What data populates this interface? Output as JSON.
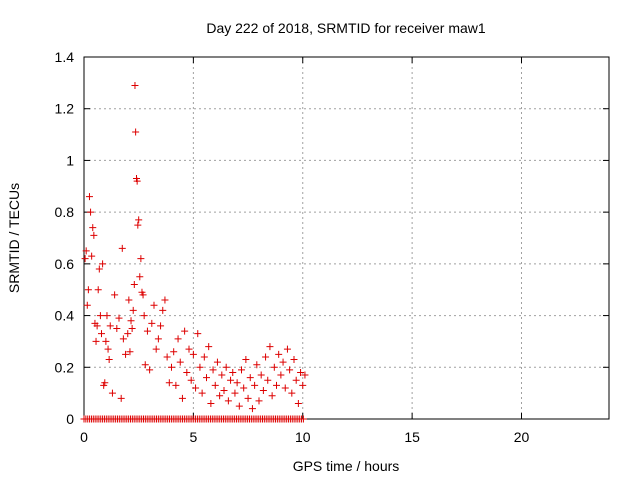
{
  "chart_data": {
    "type": "scatter",
    "title": "Day 222 of 2018, SRMTID for receiver maw1",
    "xlabel": "GPS time / hours",
    "ylabel": "SRMTID / TECUs",
    "xlim": [
      0,
      24
    ],
    "ylim": [
      0,
      1.4
    ],
    "x_ticks": [
      0,
      5,
      10,
      15,
      20
    ],
    "x_tick_labels": [
      "0",
      "5",
      "10",
      "15",
      "20"
    ],
    "y_ticks": [
      0,
      0.2,
      0.4,
      0.6,
      0.8,
      1,
      1.2,
      1.4
    ],
    "y_tick_labels": [
      "0",
      "0.2",
      "0.4",
      "0.6",
      "0.8",
      "1",
      "1.2",
      "1.4"
    ],
    "grid": true,
    "marker": "+",
    "series": [
      {
        "name": "SRMTID",
        "color": "#dd0000",
        "points": [
          [
            0.05,
            0.62
          ],
          [
            0.1,
            0.65
          ],
          [
            0.15,
            0.44
          ],
          [
            0.2,
            0.5
          ],
          [
            0.25,
            0.86
          ],
          [
            0.3,
            0.8
          ],
          [
            0.35,
            0.63
          ],
          [
            0.4,
            0.74
          ],
          [
            0.45,
            0.71
          ],
          [
            0.5,
            0.37
          ],
          [
            0.55,
            0.3
          ],
          [
            0.6,
            0.36
          ],
          [
            0.65,
            0.5
          ],
          [
            0.7,
            0.58
          ],
          [
            0.75,
            0.4
          ],
          [
            0.8,
            0.33
          ],
          [
            0.85,
            0.6
          ],
          [
            0.9,
            0.13
          ],
          [
            0.95,
            0.14
          ],
          [
            1.0,
            0.3
          ],
          [
            1.05,
            0.4
          ],
          [
            1.1,
            0.27
          ],
          [
            1.15,
            0.23
          ],
          [
            1.2,
            0.36
          ],
          [
            1.3,
            0.1
          ],
          [
            1.4,
            0.48
          ],
          [
            1.5,
            0.35
          ],
          [
            1.6,
            0.39
          ],
          [
            1.7,
            0.08
          ],
          [
            1.75,
            0.66
          ],
          [
            1.8,
            0.31
          ],
          [
            1.9,
            0.25
          ],
          [
            2.0,
            0.33
          ],
          [
            2.05,
            0.46
          ],
          [
            2.1,
            0.26
          ],
          [
            2.15,
            0.38
          ],
          [
            2.2,
            0.35
          ],
          [
            2.25,
            0.42
          ],
          [
            2.3,
            0.52
          ],
          [
            2.33,
            1.29
          ],
          [
            2.36,
            1.11
          ],
          [
            2.4,
            0.93
          ],
          [
            2.43,
            0.92
          ],
          [
            2.46,
            0.75
          ],
          [
            2.5,
            0.77
          ],
          [
            2.55,
            0.55
          ],
          [
            2.6,
            0.62
          ],
          [
            2.65,
            0.49
          ],
          [
            2.7,
            0.48
          ],
          [
            2.75,
            0.4
          ],
          [
            2.8,
            0.21
          ],
          [
            2.9,
            0.34
          ],
          [
            3.0,
            0.19
          ],
          [
            3.1,
            0.37
          ],
          [
            3.2,
            0.44
          ],
          [
            3.3,
            0.27
          ],
          [
            3.4,
            0.31
          ],
          [
            3.5,
            0.36
          ],
          [
            3.6,
            0.42
          ],
          [
            3.7,
            0.46
          ],
          [
            3.8,
            0.24
          ],
          [
            3.9,
            0.14
          ],
          [
            4.0,
            0.2
          ],
          [
            4.1,
            0.26
          ],
          [
            4.2,
            0.13
          ],
          [
            4.3,
            0.31
          ],
          [
            4.4,
            0.22
          ],
          [
            4.5,
            0.08
          ],
          [
            4.6,
            0.34
          ],
          [
            4.7,
            0.18
          ],
          [
            4.8,
            0.27
          ],
          [
            4.9,
            0.15
          ],
          [
            5.0,
            0.25
          ],
          [
            5.1,
            0.12
          ],
          [
            5.2,
            0.33
          ],
          [
            5.3,
            0.2
          ],
          [
            5.4,
            0.1
          ],
          [
            5.5,
            0.24
          ],
          [
            5.6,
            0.16
          ],
          [
            5.7,
            0.28
          ],
          [
            5.8,
            0.06
          ],
          [
            5.9,
            0.19
          ],
          [
            6.0,
            0.13
          ],
          [
            6.1,
            0.22
          ],
          [
            6.2,
            0.09
          ],
          [
            6.3,
            0.17
          ],
          [
            6.4,
            0.11
          ],
          [
            6.5,
            0.2
          ],
          [
            6.6,
            0.07
          ],
          [
            6.7,
            0.15
          ],
          [
            6.8,
            0.18
          ],
          [
            6.9,
            0.1
          ],
          [
            7.0,
            0.14
          ],
          [
            7.1,
            0.05
          ],
          [
            7.2,
            0.19
          ],
          [
            7.3,
            0.12
          ],
          [
            7.4,
            0.23
          ],
          [
            7.5,
            0.08
          ],
          [
            7.6,
            0.16
          ],
          [
            7.7,
            0.04
          ],
          [
            7.8,
            0.13
          ],
          [
            7.9,
            0.21
          ],
          [
            8.0,
            0.07
          ],
          [
            8.1,
            0.17
          ],
          [
            8.2,
            0.11
          ],
          [
            8.3,
            0.24
          ],
          [
            8.4,
            0.15
          ],
          [
            8.5,
            0.28
          ],
          [
            8.6,
            0.09
          ],
          [
            8.7,
            0.2
          ],
          [
            8.8,
            0.13
          ],
          [
            8.9,
            0.25
          ],
          [
            9.0,
            0.17
          ],
          [
            9.1,
            0.22
          ],
          [
            9.2,
            0.12
          ],
          [
            9.3,
            0.27
          ],
          [
            9.4,
            0.19
          ],
          [
            9.5,
            0.1
          ],
          [
            9.6,
            0.23
          ],
          [
            9.7,
            0.15
          ],
          [
            9.8,
            0.06
          ],
          [
            9.9,
            0.18
          ],
          [
            10.0,
            0.13
          ],
          [
            10.1,
            0.17
          ]
        ]
      }
    ]
  }
}
